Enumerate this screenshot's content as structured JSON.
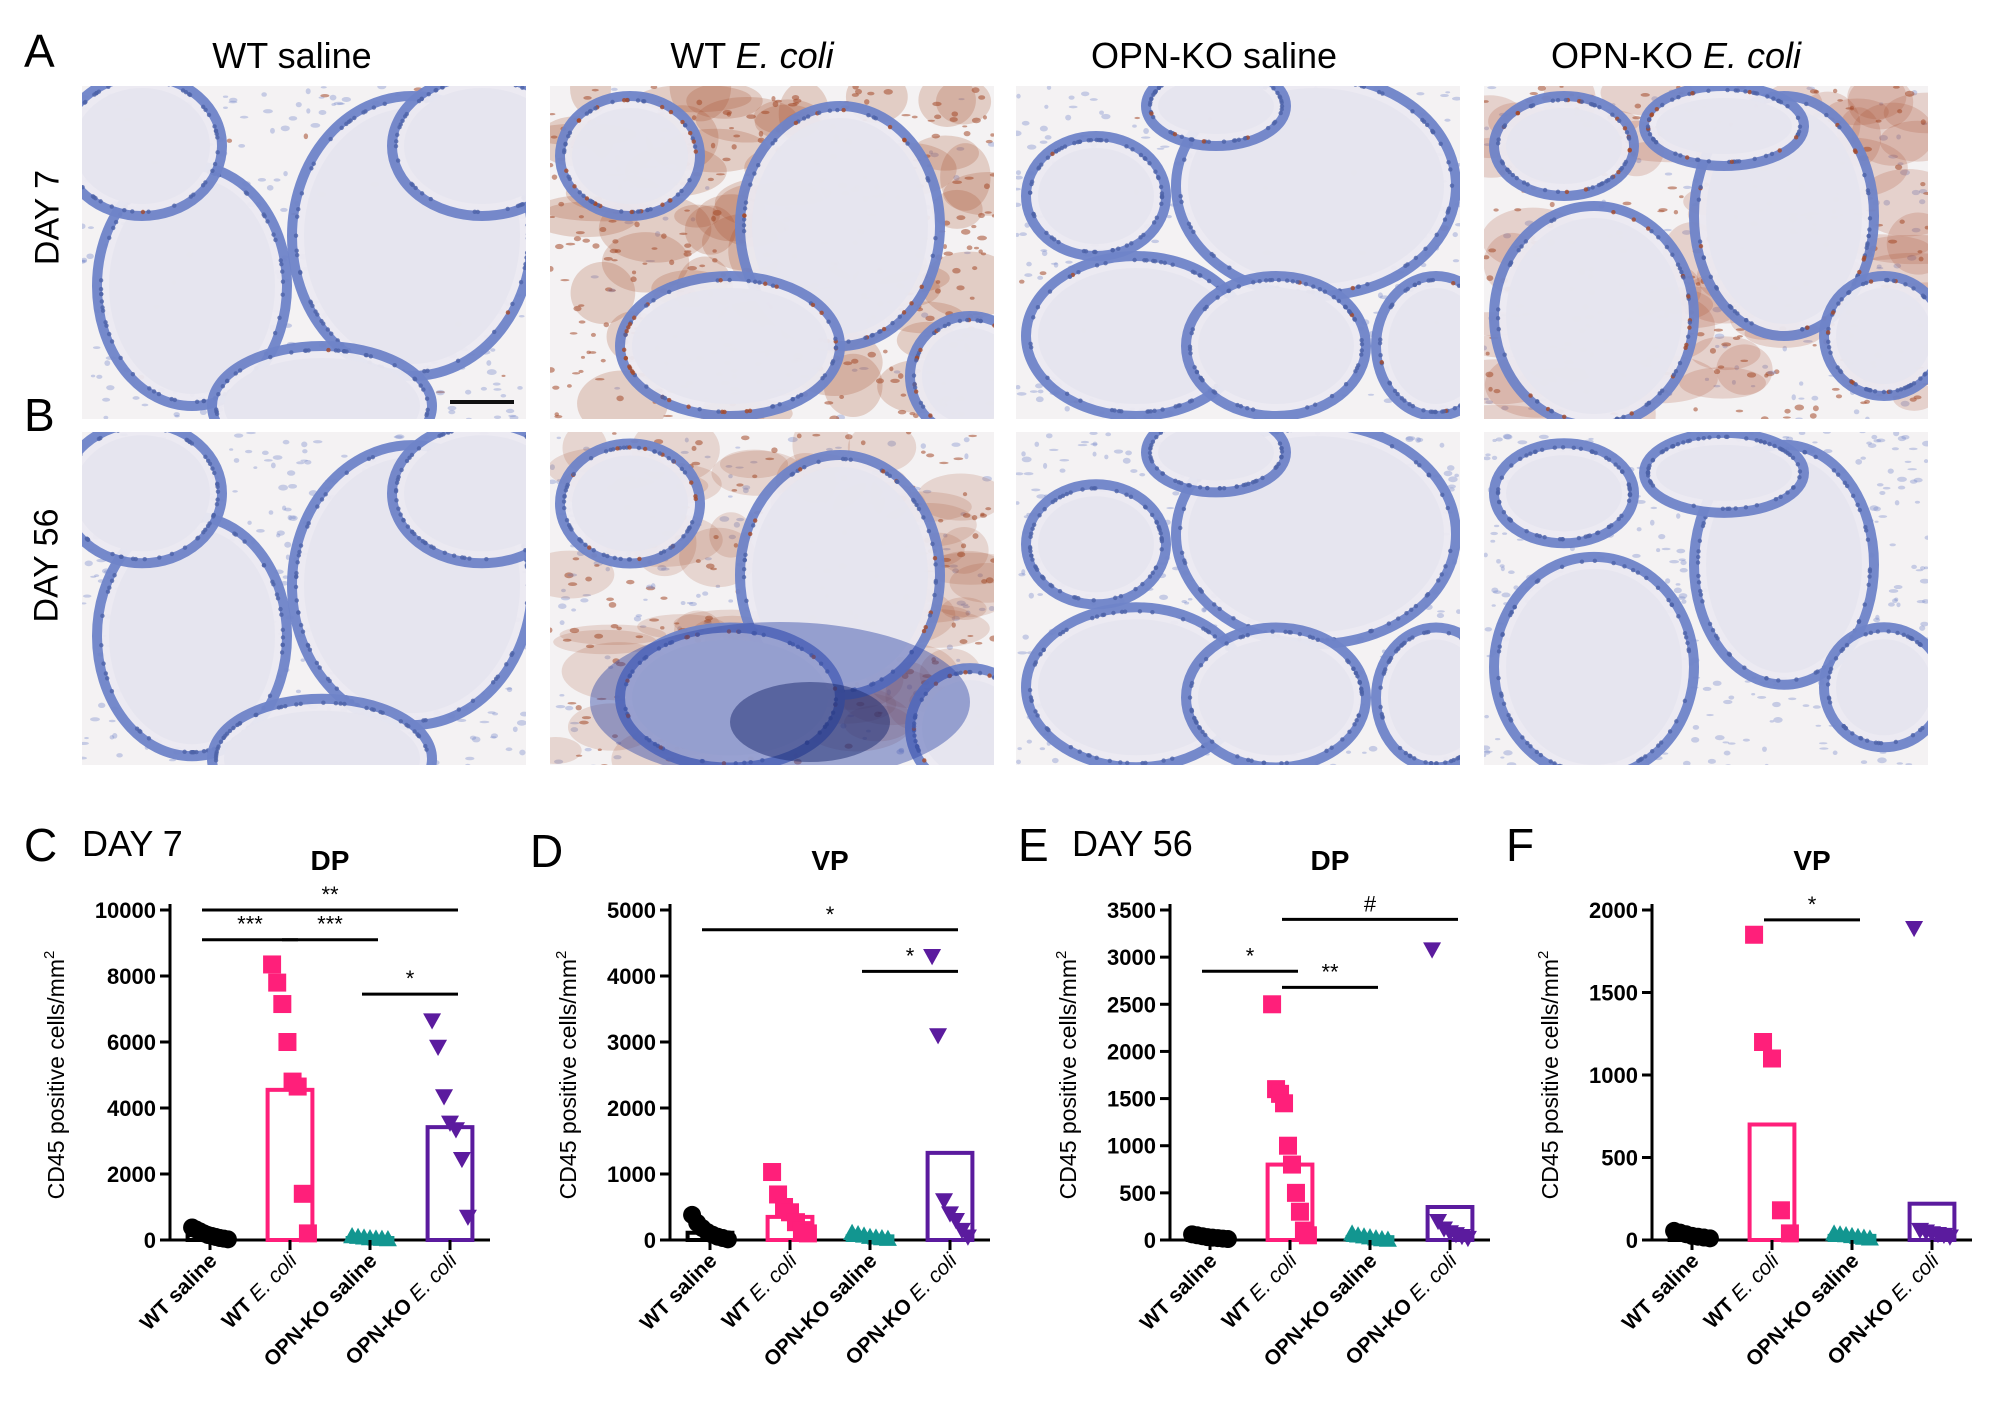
{
  "panel_letters": [
    "A",
    "B",
    "C",
    "D",
    "E",
    "F"
  ],
  "micrographs": {
    "column_titles": [
      {
        "prefix": "WT saline",
        "italic": ""
      },
      {
        "prefix": "WT ",
        "italic": "E. coli"
      },
      {
        "prefix": "OPN-KO saline",
        "italic": ""
      },
      {
        "prefix": "OPN-KO ",
        "italic": "E. coli"
      }
    ],
    "row_labels": [
      "DAY 7",
      "DAY 56"
    ],
    "tissue_colors": {
      "hematoxylin": "#6f84c9",
      "dab": "#a44a2a",
      "background": "#f4f2f3"
    },
    "stain_levels": {
      "day7": [
        0.05,
        0.85,
        0.06,
        0.6
      ],
      "day56": [
        0.0,
        0.45,
        0.0,
        0.0
      ]
    }
  },
  "day_labels": {
    "c": "DAY 7",
    "e": "DAY 56"
  },
  "ylabel": "CD45 positive cells/mm",
  "ylabel_sup": "2",
  "category_labels": [
    {
      "prefix": "WT saline",
      "italic": ""
    },
    {
      "prefix": "WT ",
      "italic": "E. coli"
    },
    {
      "prefix": "OPN-KO saline",
      "italic": ""
    },
    {
      "prefix": "OPN-KO ",
      "italic": "E. coli"
    }
  ],
  "series_colors": [
    "#000000",
    "#ff1f7a",
    "#129690",
    "#5b1b9e"
  ],
  "series_markers": [
    "circle",
    "square",
    "triangle-up",
    "triangle-down"
  ],
  "chart_data": [
    {
      "panel": "C",
      "type": "bar",
      "title": "DP",
      "categories": [
        "WT saline",
        "WT E. coli",
        "OPN-KO saline",
        "OPN-KO E. coli"
      ],
      "values": [
        150,
        4550,
        60,
        3420
      ],
      "points": [
        [
          380,
          320,
          260,
          200,
          150,
          120,
          90,
          60,
          40,
          20
        ],
        [
          8350,
          7800,
          7150,
          6000,
          4800,
          4650,
          1400,
          200
        ],
        [
          120,
          100,
          80,
          60,
          50,
          40,
          30
        ],
        [
          6650,
          5850,
          4350,
          3550,
          3350,
          2450,
          700
        ]
      ],
      "ylim": [
        0,
        10000
      ],
      "yticks": [
        0,
        2000,
        4000,
        6000,
        8000,
        10000
      ],
      "significance": [
        {
          "from": 0,
          "to": 3,
          "label": "**",
          "y": 10000
        },
        {
          "from": 0,
          "to": 1,
          "label": "***",
          "y": 9100
        },
        {
          "from": 1,
          "to": 2,
          "label": "***",
          "y": 9100
        },
        {
          "from": 2,
          "to": 3,
          "label": "*",
          "y": 7450
        }
      ]
    },
    {
      "panel": "D",
      "type": "bar",
      "title": "VP",
      "categories": [
        "WT saline",
        "WT E. coli",
        "OPN-KO saline",
        "OPN-KO E. coli"
      ],
      "values": [
        110,
        350,
        55,
        1320
      ],
      "points": [
        [
          380,
          260,
          180,
          120,
          80,
          50,
          30,
          10
        ],
        [
          1030,
          690,
          500,
          420,
          270,
          150,
          100
        ],
        [
          110,
          90,
          70,
          50,
          40,
          30,
          20
        ],
        [
          4300,
          3100,
          600,
          400,
          300,
          150,
          50
        ]
      ],
      "ylim": [
        0,
        5000
      ],
      "yticks": [
        0,
        1000,
        2000,
        3000,
        4000,
        5000
      ],
      "significance": [
        {
          "from": 0,
          "to": 3,
          "label": "*",
          "y": 4700
        },
        {
          "from": 2,
          "to": 3,
          "label": "*",
          "y": 4070
        }
      ]
    },
    {
      "panel": "E",
      "type": "bar",
      "title": "DP",
      "categories": [
        "WT saline",
        "WT E. coli",
        "OPN-KO saline",
        "OPN-KO E. coli"
      ],
      "values": [
        30,
        800,
        30,
        350
      ],
      "points": [
        [
          60,
          50,
          40,
          30,
          25,
          20,
          15,
          10
        ],
        [
          2500,
          1600,
          1550,
          1450,
          1000,
          800,
          500,
          300,
          100,
          50
        ],
        [
          70,
          50,
          40,
          30,
          20,
          10,
          5
        ],
        [
          3080,
          200,
          120,
          80,
          60,
          40,
          20
        ]
      ],
      "ylim": [
        0,
        3500
      ],
      "yticks": [
        0,
        500,
        1000,
        1500,
        2000,
        2500,
        3000,
        3500
      ],
      "significance": [
        {
          "from": 1,
          "to": 3,
          "label": "#",
          "y": 3400
        },
        {
          "from": 0,
          "to": 1,
          "label": "*",
          "y": 2850
        },
        {
          "from": 1,
          "to": 2,
          "label": "**",
          "y": 2680
        }
      ]
    },
    {
      "panel": "F",
      "type": "bar",
      "title": "VP",
      "categories": [
        "WT saline",
        "WT E. coli",
        "OPN-KO saline",
        "OPN-KO E. coli"
      ],
      "values": [
        30,
        700,
        25,
        220
      ],
      "points": [
        [
          55,
          45,
          35,
          25,
          20,
          15,
          10
        ],
        [
          1850,
          1200,
          1100,
          180,
          40
        ],
        [
          40,
          35,
          30,
          25,
          20,
          15,
          10
        ],
        [
          1890,
          60,
          50,
          40,
          35,
          30,
          20
        ]
      ],
      "ylim": [
        0,
        2000
      ],
      "yticks": [
        0,
        500,
        1000,
        1500,
        2000
      ],
      "significance": [
        {
          "from": 1,
          "to": 2,
          "label": "*",
          "y": 1940
        }
      ]
    }
  ]
}
